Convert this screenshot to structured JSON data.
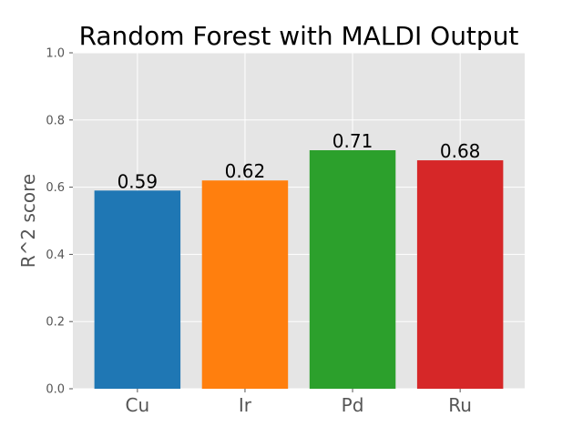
{
  "chart_data": {
    "type": "bar",
    "title": "Random Forest with MALDI Output",
    "xlabel": "",
    "ylabel": "R^2 score",
    "categories": [
      "Cu",
      "Ir",
      "Pd",
      "Ru"
    ],
    "values": [
      0.59,
      0.62,
      0.71,
      0.68
    ],
    "data_labels": [
      "0.59",
      "0.62",
      "0.71",
      "0.68"
    ],
    "colors": [
      "#1f77b4",
      "#ff7f0e",
      "#2ca02c",
      "#d62728"
    ],
    "ylim": [
      0,
      1.0
    ],
    "yticks": [
      "0.0",
      "0.2",
      "0.4",
      "0.6",
      "0.8",
      "1.0"
    ],
    "grid": true,
    "legend": "none",
    "style": {
      "plot_background": "#e5e5e5",
      "grid_color": "#ffffff"
    }
  }
}
